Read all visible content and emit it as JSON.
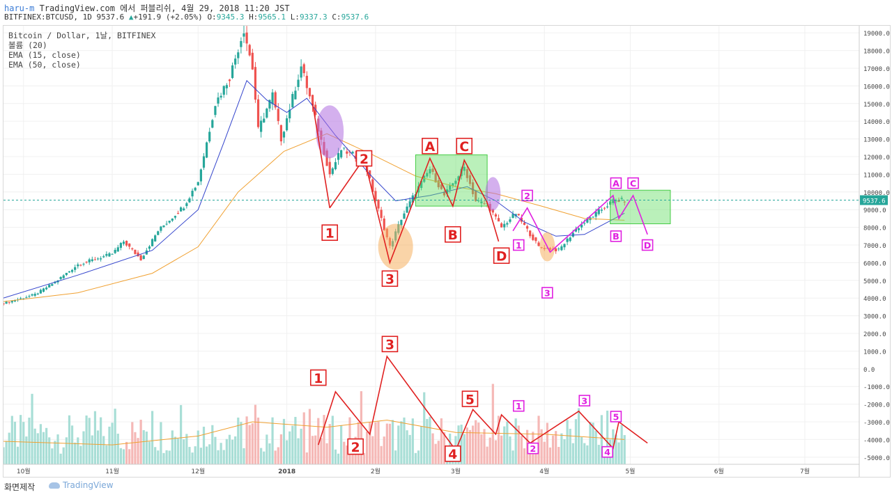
{
  "header": {
    "user": "haru-m",
    "line1_rest": " TradingView.com 에서 퍼블리쉬, 4월 29, 2018 11:20 JST",
    "symbol": "BITFINEX:BTCUSD, 1D",
    "last": "9537.6",
    "change": "+191.9 (+2.05%)",
    "o_label": "O:",
    "o": "9345.3",
    "h_label": "H:",
    "h": "9565.1",
    "l_label": "L:",
    "l": "9337.3",
    "c_label": "C:",
    "c": "9537.6"
  },
  "legend": {
    "l1": "Bitcoin / Dollar, 1날, BITFINEX",
    "l2": "볼륨 (20)",
    "l3": "EMA (15, close)",
    "l4": "EMA (50, close)"
  },
  "footer": {
    "credit": "화면제작",
    "logo": "TradingView"
  },
  "colors": {
    "up": "#26a69a",
    "down": "#ef5350",
    "ema15": "#3344cc",
    "ema50": "#f0a030",
    "wave_red": "#e02020",
    "wave_magenta": "#e020e0",
    "zone_green": "#66dd66",
    "oval_purple": "#b070e0",
    "oval_orange": "#f5b060"
  },
  "chart_data": {
    "type": "candlestick",
    "title": "Bitcoin / Dollar, 1날, BITFINEX",
    "price_axis": {
      "ylim": [
        -5400,
        19400
      ],
      "ticks": [
        19000,
        18000,
        17000,
        16000,
        15000,
        14000,
        13000,
        12000,
        11000,
        10000,
        9000,
        8000,
        7000,
        6000,
        5000,
        4000,
        3000,
        2000,
        1000,
        0,
        -1000,
        -2000,
        -3000,
        -4000,
        -5000
      ],
      "tick_labels": [
        "19000.0",
        "18000.0",
        "17000.0",
        "16000.0",
        "15000.0",
        "14000.0",
        "13000.0",
        "12000.0",
        "11000.0",
        "10000.0",
        "9000.0",
        "8000.0",
        "7000.0",
        "6000.0",
        "5000.0",
        "4000.0",
        "3000.0",
        "2000.0",
        "1000.0",
        "0.0",
        "-1000.0",
        "-2000.0",
        "-3000.0",
        "-4000.0",
        "-5000.0"
      ],
      "last_price_label": "9537.6"
    },
    "time_axis": {
      "start": "2017-09-24",
      "end": "2018-07-20",
      "ticks": [
        {
          "date": "2017-10-01",
          "label": "10월"
        },
        {
          "date": "2017-11-01",
          "label": "11월"
        },
        {
          "date": "2017-12-01",
          "label": "12월"
        },
        {
          "date": "2018-01-01",
          "label": "2018"
        },
        {
          "date": "2018-02-01",
          "label": "2월"
        },
        {
          "date": "2018-03-01",
          "label": "3월"
        },
        {
          "date": "2018-04-01",
          "label": "4월"
        },
        {
          "date": "2018-05-01",
          "label": "5월"
        },
        {
          "date": "2018-06-01",
          "label": "6월"
        },
        {
          "date": "2018-07-01",
          "label": "7월"
        }
      ]
    },
    "price_path": [
      [
        "2017-09-24",
        3700
      ],
      [
        "2017-10-05",
        4200
      ],
      [
        "2017-10-12",
        4900
      ],
      [
        "2017-10-20",
        5900
      ],
      [
        "2017-11-01",
        6500
      ],
      [
        "2017-11-05",
        7200
      ],
      [
        "2017-11-11",
        6200
      ],
      [
        "2017-11-17",
        7800
      ],
      [
        "2017-11-26",
        9200
      ],
      [
        "2017-12-01",
        10600
      ],
      [
        "2017-12-07",
        15000
      ],
      [
        "2017-12-12",
        16500
      ],
      [
        "2017-12-17",
        19200
      ],
      [
        "2017-12-20",
        17000
      ],
      [
        "2017-12-22",
        13500
      ],
      [
        "2017-12-27",
        15500
      ],
      [
        "2017-12-30",
        13000
      ],
      [
        "2018-01-06",
        17100
      ],
      [
        "2018-01-10",
        14800
      ],
      [
        "2018-01-16",
        11000
      ],
      [
        "2018-01-20",
        12400
      ],
      [
        "2018-01-28",
        11800
      ],
      [
        "2018-02-01",
        9500
      ],
      [
        "2018-02-06",
        6900
      ],
      [
        "2018-02-10",
        8500
      ],
      [
        "2018-02-15",
        10000
      ],
      [
        "2018-02-20",
        11300
      ],
      [
        "2018-02-25",
        9800
      ],
      [
        "2018-03-04",
        11400
      ],
      [
        "2018-03-08",
        9500
      ],
      [
        "2018-03-12",
        9300
      ],
      [
        "2018-03-17",
        8000
      ],
      [
        "2018-03-22",
        8800
      ],
      [
        "2018-03-30",
        6900
      ],
      [
        "2018-04-06",
        6700
      ],
      [
        "2018-04-12",
        7900
      ],
      [
        "2018-04-20",
        8900
      ],
      [
        "2018-04-25",
        9500
      ],
      [
        "2018-04-29",
        9537.6
      ]
    ],
    "ema15_path": [
      [
        "2017-09-24",
        4000
      ],
      [
        "2017-10-20",
        5300
      ],
      [
        "2017-11-15",
        6700
      ],
      [
        "2017-12-01",
        9000
      ],
      [
        "2017-12-10",
        12800
      ],
      [
        "2017-12-18",
        16300
      ],
      [
        "2017-12-25",
        15200
      ],
      [
        "2018-01-01",
        14500
      ],
      [
        "2018-01-08",
        15300
      ],
      [
        "2018-01-18",
        13200
      ],
      [
        "2018-01-30",
        11000
      ],
      [
        "2018-02-08",
        9500
      ],
      [
        "2018-02-20",
        9800
      ],
      [
        "2018-03-05",
        10300
      ],
      [
        "2018-03-15",
        9500
      ],
      [
        "2018-03-25",
        8300
      ],
      [
        "2018-04-05",
        7500
      ],
      [
        "2018-04-15",
        7600
      ],
      [
        "2018-04-29",
        8800
      ]
    ],
    "ema50_path": [
      [
        "2017-09-24",
        3800
      ],
      [
        "2017-10-20",
        4300
      ],
      [
        "2017-11-15",
        5400
      ],
      [
        "2017-12-01",
        6900
      ],
      [
        "2017-12-15",
        10000
      ],
      [
        "2017-12-31",
        12300
      ],
      [
        "2018-01-15",
        13300
      ],
      [
        "2018-01-31",
        12100
      ],
      [
        "2018-02-15",
        10900
      ],
      [
        "2018-03-01",
        10300
      ],
      [
        "2018-03-15",
        9900
      ],
      [
        "2018-03-31",
        9200
      ],
      [
        "2018-04-15",
        8500
      ],
      [
        "2018-04-29",
        8400
      ]
    ],
    "volume_ma_path": [
      [
        "2017-09-24",
        -4100
      ],
      [
        "2017-11-01",
        -4300
      ],
      [
        "2017-12-01",
        -3800
      ],
      [
        "2017-12-20",
        -3000
      ],
      [
        "2018-01-15",
        -3300
      ],
      [
        "2018-02-05",
        -2900
      ],
      [
        "2018-03-01",
        -3600
      ],
      [
        "2018-04-01",
        -3700
      ],
      [
        "2018-04-29",
        -4000
      ]
    ],
    "annotations": {
      "red_labels": [
        {
          "text": "2",
          "date": "2018-01-28",
          "price": 11900
        },
        {
          "text": "1",
          "date": "2018-01-16",
          "price": 7700
        },
        {
          "text": "3",
          "date": "2018-02-06",
          "price": 5100
        },
        {
          "text": "A",
          "date": "2018-02-20",
          "price": 12600
        },
        {
          "text": "B",
          "date": "2018-02-28",
          "price": 7600
        },
        {
          "text": "C",
          "date": "2018-03-04",
          "price": 12600
        },
        {
          "text": "D",
          "date": "2018-03-17",
          "price": 6400
        },
        {
          "text": "1",
          "date": "2018-01-12",
          "price": -500
        },
        {
          "text": "2",
          "date": "2018-01-25",
          "price": -4400
        },
        {
          "text": "3",
          "date": "2018-02-06",
          "price": 1400
        },
        {
          "text": "4",
          "date": "2018-02-28",
          "price": -4800
        },
        {
          "text": "5",
          "date": "2018-03-06",
          "price": -1700
        }
      ],
      "magenta_labels": [
        {
          "text": "A",
          "date": "2018-04-26",
          "price": 10500
        },
        {
          "text": "C",
          "date": "2018-05-02",
          "price": 10500
        },
        {
          "text": "B",
          "date": "2018-04-26",
          "price": 7500
        },
        {
          "text": "D",
          "date": "2018-05-07",
          "price": 7000
        },
        {
          "text": "1",
          "date": "2018-03-23",
          "price": 7000
        },
        {
          "text": "2",
          "date": "2018-03-26",
          "price": 9800
        },
        {
          "text": "3",
          "date": "2018-04-02",
          "price": 4300
        },
        {
          "text": "1",
          "date": "2018-03-23",
          "price": -2100
        },
        {
          "text": "2",
          "date": "2018-03-28",
          "price": -4500
        },
        {
          "text": "3",
          "date": "2018-04-15",
          "price": -1800
        },
        {
          "text": "4",
          "date": "2018-04-23",
          "price": -4700
        },
        {
          "text": "5",
          "date": "2018-04-26",
          "price": -2700
        }
      ]
    }
  }
}
